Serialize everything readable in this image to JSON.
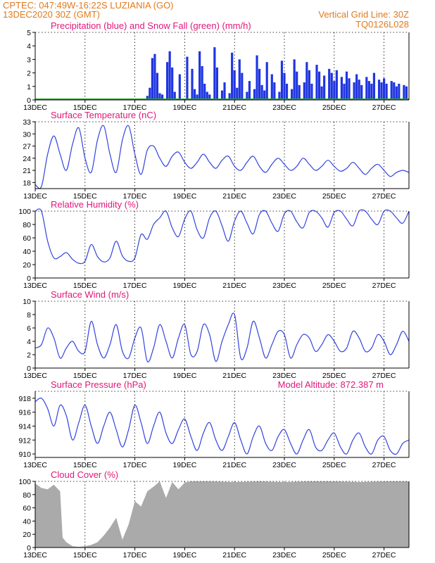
{
  "header": {
    "line1": "CPTEC:  047:49W-16:22S  LUZIANIA (GO)",
    "line2_left": "13DEC2020 30Z (GMT)",
    "line2_right": "Vertical Grid Line: 30Z",
    "code": "TQ0126L028"
  },
  "colors": {
    "header": "#e07a1e",
    "panel_title": "#e0177a",
    "precip": "#1f35e0",
    "snow": "#22aa22",
    "line": "#3344dd",
    "cloud": "#aaaaaa"
  },
  "x_axis": {
    "ticks": [
      "13DEC",
      "15DEC",
      "17DEC",
      "19DEC",
      "21DEC",
      "23DEC",
      "25DEC",
      "27DEC"
    ],
    "tick_days": [
      0,
      2,
      4,
      6,
      8,
      10,
      12,
      14
    ],
    "range_days": [
      0,
      15
    ]
  },
  "chart_data": [
    {
      "type": "bar",
      "title": "Precipitation (blue) and Snow Fall (green) (mm/h)",
      "ylim": [
        0,
        5
      ],
      "yticks": [
        "0",
        "1",
        "2",
        "3",
        "4",
        "5"
      ],
      "series": [
        {
          "name": "Precipitation (blue)",
          "x": [
            4.5,
            4.6,
            4.7,
            4.8,
            4.9,
            5.0,
            5.1,
            5.3,
            5.4,
            5.5,
            5.6,
            5.8,
            6.1,
            6.3,
            6.4,
            6.5,
            6.6,
            6.7,
            6.8,
            6.9,
            7.0,
            7.2,
            7.3,
            7.5,
            7.6,
            7.8,
            7.9,
            8.0,
            8.1,
            8.2,
            8.3,
            8.5,
            8.6,
            8.8,
            8.9,
            9.0,
            9.1,
            9.2,
            9.3,
            9.5,
            9.6,
            9.8,
            9.9,
            10.0,
            10.1,
            10.3,
            10.4,
            10.5,
            10.6,
            10.8,
            10.9,
            11.0,
            11.1,
            11.3,
            11.4,
            11.5,
            11.6,
            11.8,
            11.9,
            12.0,
            12.1,
            12.3,
            12.4,
            12.5,
            12.6,
            12.8,
            12.9,
            13.0,
            13.1,
            13.3,
            13.4,
            13.5,
            13.6,
            13.8,
            13.9,
            14.0,
            14.1,
            14.3,
            14.4,
            14.5,
            14.6,
            14.8,
            14.9
          ],
          "values": [
            0.3,
            0.9,
            3.1,
            3.4,
            2.0,
            0.5,
            0.4,
            2.8,
            3.6,
            2.4,
            0.6,
            1.9,
            3.2,
            2.3,
            0.8,
            0.4,
            3.6,
            2.5,
            1.2,
            0.6,
            0.4,
            3.9,
            2.4,
            0.7,
            1.3,
            0.5,
            3.5,
            2.2,
            0.9,
            3.0,
            2.0,
            0.6,
            1.4,
            0.8,
            3.3,
            2.3,
            1.1,
            0.7,
            2.8,
            1.9,
            1.3,
            0.6,
            2.9,
            2.0,
            1.2,
            0.8,
            3.0,
            2.1,
            1.1,
            1.3,
            2.8,
            2.2,
            1.2,
            2.6,
            2.1,
            1.0,
            1.8,
            2.3,
            2.0,
            1.4,
            2.2,
            1.7,
            1.2,
            2.1,
            1.6,
            1.3,
            1.9,
            1.5,
            1.1,
            1.7,
            1.4,
            1.2,
            2.0,
            1.5,
            1.3,
            1.6,
            1.2,
            1.4,
            1.3,
            1.0,
            1.2,
            1.1,
            1.0
          ]
        },
        {
          "name": "Snow Fall (green)",
          "x": [
            0,
            15
          ],
          "values": [
            0,
            0
          ]
        }
      ]
    },
    {
      "type": "line",
      "title": "Surface Temperature (nC)",
      "ylim": [
        16.5,
        33
      ],
      "yticks": [
        "18",
        "21",
        "24",
        "27",
        "30",
        "33"
      ],
      "x": [
        0,
        0.25,
        0.5,
        0.75,
        1.0,
        1.25,
        1.5,
        1.75,
        2.0,
        2.25,
        2.5,
        2.75,
        3.0,
        3.25,
        3.5,
        3.75,
        4.0,
        4.25,
        4.5,
        4.75,
        5.0,
        5.25,
        5.5,
        5.75,
        6.0,
        6.25,
        6.5,
        6.75,
        7.0,
        7.25,
        7.5,
        7.75,
        8.0,
        8.25,
        8.5,
        8.75,
        9.0,
        9.25,
        9.5,
        9.75,
        10.0,
        10.25,
        10.5,
        10.75,
        11.0,
        11.25,
        11.5,
        11.75,
        12.0,
        12.25,
        12.5,
        12.75,
        13.0,
        13.25,
        13.5,
        13.75,
        14.0,
        14.25,
        14.5,
        14.75,
        15.0
      ],
      "values": [
        17.5,
        17.0,
        25.0,
        29.5,
        25.0,
        21.0,
        27.5,
        31.5,
        24.0,
        20.5,
        28.5,
        32.0,
        25.0,
        20.5,
        28.5,
        32.0,
        25.0,
        20.0,
        26.0,
        27.0,
        24.0,
        22.0,
        24.5,
        25.5,
        23.0,
        21.5,
        23.0,
        25.0,
        23.0,
        21.5,
        23.5,
        24.5,
        22.0,
        21.0,
        23.0,
        24.5,
        22.0,
        20.5,
        22.5,
        24.0,
        22.5,
        21.0,
        22.0,
        24.0,
        22.5,
        21.0,
        22.0,
        23.5,
        22.0,
        20.8,
        21.5,
        23.0,
        21.5,
        20.0,
        21.5,
        22.5,
        21.0,
        19.5,
        20.5,
        21.0,
        20.5
      ]
    },
    {
      "type": "line",
      "title": "Relative Humidity (%)",
      "ylim": [
        0,
        100
      ],
      "yticks": [
        "0",
        "20",
        "40",
        "60",
        "80",
        "100"
      ],
      "x": [
        0,
        0.25,
        0.5,
        0.75,
        1.0,
        1.25,
        1.5,
        1.75,
        2.0,
        2.25,
        2.5,
        2.75,
        3.0,
        3.25,
        3.5,
        3.75,
        4.0,
        4.25,
        4.5,
        4.75,
        5.0,
        5.25,
        5.5,
        5.75,
        6.0,
        6.25,
        6.5,
        6.75,
        7.0,
        7.25,
        7.5,
        7.75,
        8.0,
        8.25,
        8.5,
        8.75,
        9.0,
        9.25,
        9.5,
        9.75,
        10.0,
        10.25,
        10.5,
        10.75,
        11.0,
        11.25,
        11.5,
        11.75,
        12.0,
        12.25,
        12.5,
        12.75,
        13.0,
        13.25,
        13.5,
        13.75,
        14.0,
        14.25,
        14.5,
        14.75,
        15.0
      ],
      "values": [
        100,
        100,
        55,
        30,
        32,
        38,
        28,
        22,
        25,
        50,
        32,
        24,
        30,
        55,
        33,
        25,
        30,
        65,
        58,
        80,
        90,
        100,
        75,
        62,
        88,
        100,
        72,
        60,
        90,
        100,
        78,
        55,
        85,
        100,
        82,
        66,
        95,
        100,
        82,
        70,
        96,
        100,
        84,
        75,
        98,
        100,
        90,
        76,
        98,
        100,
        88,
        78,
        100,
        100,
        88,
        80,
        100,
        100,
        90,
        82,
        100
      ]
    },
    {
      "type": "line",
      "title": "Surface Wind (m/s)",
      "ylim": [
        0,
        10
      ],
      "yticks": [
        "0",
        "2",
        "4",
        "6",
        "8",
        "10"
      ],
      "x": [
        0,
        0.25,
        0.5,
        0.75,
        1.0,
        1.25,
        1.5,
        1.75,
        2.0,
        2.25,
        2.5,
        2.75,
        3.0,
        3.25,
        3.5,
        3.75,
        4.0,
        4.25,
        4.5,
        4.75,
        5.0,
        5.25,
        5.5,
        5.75,
        6.0,
        6.25,
        6.5,
        6.75,
        7.0,
        7.25,
        7.5,
        7.75,
        8.0,
        8.25,
        8.5,
        8.75,
        9.0,
        9.25,
        9.5,
        9.75,
        10.0,
        10.25,
        10.5,
        10.75,
        11.0,
        11.25,
        11.5,
        11.75,
        12.0,
        12.25,
        12.5,
        12.75,
        13.0,
        13.25,
        13.5,
        13.75,
        14.0,
        14.25,
        14.5,
        14.75,
        15.0
      ],
      "values": [
        3.0,
        3.5,
        6.0,
        4.5,
        1.5,
        3.0,
        4.0,
        2.5,
        2.5,
        7.0,
        3.5,
        1.5,
        3.5,
        6.5,
        2.5,
        1.5,
        4.5,
        6.0,
        1.0,
        3.0,
        6.5,
        4.0,
        1.5,
        4.5,
        6.5,
        2.0,
        2.5,
        6.5,
        5.0,
        1.0,
        4.0,
        6.5,
        8.0,
        1.5,
        3.0,
        7.0,
        4.5,
        1.5,
        3.5,
        5.5,
        5.0,
        1.5,
        3.5,
        5.0,
        4.5,
        2.5,
        3.5,
        5.0,
        4.0,
        2.5,
        3.0,
        5.5,
        4.5,
        2.5,
        3.0,
        5.0,
        4.0,
        2.0,
        3.5,
        5.5,
        4.0
      ]
    },
    {
      "type": "line",
      "title": "Surface Pressure (hPa)",
      "annotation": "Model Altitude: 872.387 m",
      "ylim": [
        909.5,
        919
      ],
      "yticks": [
        "910",
        "912",
        "914",
        "916",
        "918"
      ],
      "x": [
        0,
        0.25,
        0.5,
        0.75,
        1.0,
        1.25,
        1.5,
        1.75,
        2.0,
        2.25,
        2.5,
        2.75,
        3.0,
        3.25,
        3.5,
        3.75,
        4.0,
        4.25,
        4.5,
        4.75,
        5.0,
        5.25,
        5.5,
        5.75,
        6.0,
        6.25,
        6.5,
        6.75,
        7.0,
        7.25,
        7.5,
        7.75,
        8.0,
        8.25,
        8.5,
        8.75,
        9.0,
        9.25,
        9.5,
        9.75,
        10.0,
        10.25,
        10.5,
        10.75,
        11.0,
        11.25,
        11.5,
        11.75,
        12.0,
        12.25,
        12.5,
        12.75,
        13.0,
        13.25,
        13.5,
        13.75,
        14.0,
        14.25,
        14.5,
        14.75,
        15.0
      ],
      "values": [
        917.5,
        918.0,
        916.5,
        914.0,
        917.0,
        915.5,
        912.0,
        914.5,
        917.0,
        914.0,
        911.5,
        914.0,
        916.0,
        913.5,
        911.0,
        913.5,
        917.0,
        914.5,
        911.5,
        914.0,
        916.0,
        913.0,
        911.5,
        913.5,
        915.0,
        912.5,
        910.5,
        913.0,
        914.5,
        912.0,
        910.5,
        912.5,
        914.5,
        912.0,
        910.0,
        912.5,
        914.0,
        911.5,
        910.5,
        912.5,
        913.5,
        911.5,
        910.0,
        912.0,
        913.5,
        911.0,
        910.5,
        912.0,
        913.0,
        911.0,
        910.0,
        912.0,
        913.0,
        911.0,
        910.0,
        912.0,
        912.5,
        910.5,
        910.0,
        911.5,
        912.0
      ]
    },
    {
      "type": "area",
      "title": "Cloud Cover (%)",
      "ylim": [
        0,
        100
      ],
      "yticks": [
        "0",
        "20",
        "40",
        "60",
        "80",
        "100"
      ],
      "x": [
        0,
        0.25,
        0.5,
        0.75,
        1.0,
        1.1,
        1.25,
        1.5,
        1.75,
        2.0,
        2.25,
        2.5,
        2.75,
        3.0,
        3.25,
        3.5,
        3.75,
        4.0,
        4.25,
        4.5,
        4.75,
        5.0,
        5.25,
        5.5,
        5.75,
        6.0,
        6.25,
        6.5,
        7.0,
        8.0,
        9.0,
        10.0,
        11.0,
        12.0,
        13.0,
        14.0,
        15.0
      ],
      "values": [
        97,
        90,
        88,
        95,
        85,
        15,
        8,
        2,
        1,
        2,
        4,
        8,
        18,
        30,
        45,
        12,
        35,
        70,
        62,
        85,
        92,
        100,
        75,
        99,
        88,
        98,
        100,
        100,
        100,
        99,
        100,
        99,
        100,
        100,
        99,
        100,
        100
      ]
    }
  ]
}
